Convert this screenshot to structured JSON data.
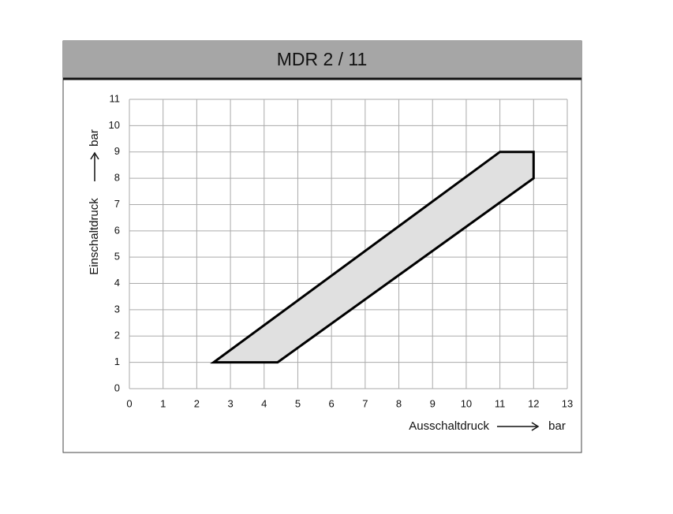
{
  "chart_data": {
    "type": "polygon",
    "title": "MDR 2 / 11",
    "x_label": "Ausschaltdruck",
    "x_unit": "bar",
    "y_label": "Einschaltdruck",
    "y_unit": "bar",
    "x": [
      2.5,
      4.4,
      12,
      12,
      11
    ],
    "y": [
      1,
      1,
      8,
      9,
      9
    ],
    "color": "#e0e0e0",
    "edge_color": "#000000",
    "xlim": [
      0,
      13
    ],
    "xticks": [
      0,
      1,
      2,
      3,
      4,
      5,
      6,
      7,
      8,
      9,
      10,
      11,
      12,
      13
    ],
    "ylim": [
      0,
      11
    ],
    "yticks": [
      0,
      1,
      2,
      3,
      4,
      5,
      6,
      7,
      8,
      9,
      10,
      11
    ],
    "grid": true
  }
}
